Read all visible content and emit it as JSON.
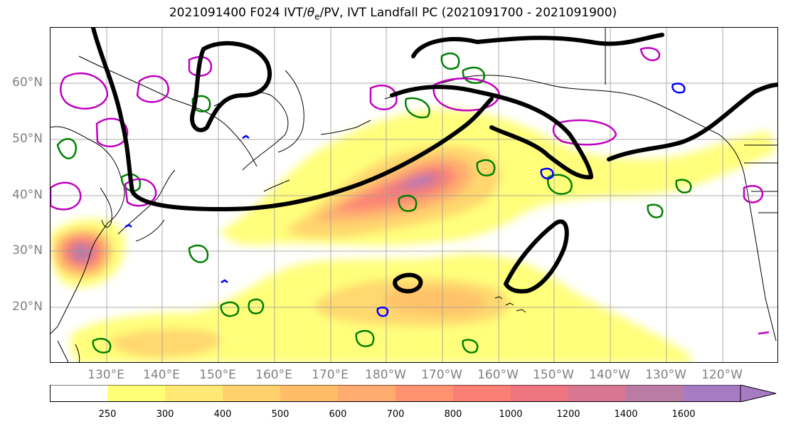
{
  "title": {
    "prefix": "2021091400 F024 IVT/",
    "theta": "θ",
    "theta_sub": "e",
    "suffix": "/PV, IVT Landfall PC (2021091700 - 2021091900)"
  },
  "map": {
    "lat_labels": [
      "60°N",
      "50°N",
      "40°N",
      "30°N",
      "20°N"
    ],
    "lon_labels": [
      "130°E",
      "140°E",
      "150°E",
      "160°E",
      "170°E",
      "180°W",
      "170°W",
      "160°W",
      "150°W",
      "140°W",
      "130°W",
      "120°W"
    ],
    "grid": true,
    "colors": {
      "coast": "#000000",
      "grid": "#999999",
      "landfall_contour": "#000000",
      "theta_e_contour": "#008000",
      "pv_contour": "#c000c0",
      "pv_negative": "#0000ff"
    }
  },
  "colorbar": {
    "levels": [
      "250",
      "300",
      "400",
      "500",
      "600",
      "700",
      "800",
      "1000",
      "1200",
      "1400",
      "1600"
    ],
    "colors": [
      "#ffffff",
      "#ffff75",
      "#ffe873",
      "#ffd16d",
      "#ffbd6a",
      "#ffaa6f",
      "#ff9271",
      "#fb7f75",
      "#ed7681",
      "#d8778f",
      "#ba7ba5",
      "#a77bc4"
    ],
    "extend": "max"
  }
}
